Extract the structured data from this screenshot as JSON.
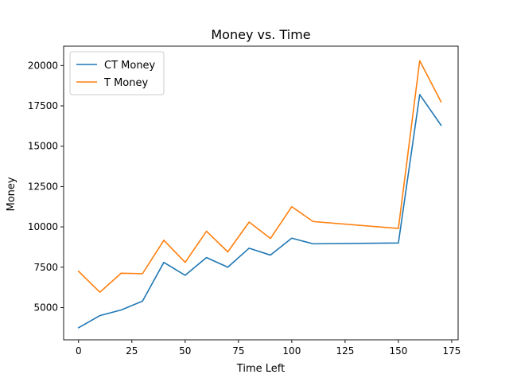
{
  "chart_data": {
    "type": "line",
    "title": "Money vs. Time",
    "xlabel": "Time Left",
    "ylabel": "Money",
    "xlim": [
      -7,
      178
    ],
    "ylim": [
      3000,
      21200
    ],
    "xticks": [
      0,
      25,
      50,
      75,
      100,
      125,
      150,
      175
    ],
    "yticks": [
      5000,
      7500,
      10000,
      12500,
      15000,
      17500,
      20000
    ],
    "grid": false,
    "legend_position": "top-left",
    "x": [
      0,
      10,
      20,
      30,
      40,
      50,
      60,
      70,
      80,
      90,
      100,
      110,
      150,
      160,
      170
    ],
    "series": [
      {
        "name": "CT Money",
        "color": "#1f77b4",
        "values": [
          3750,
          4500,
          4850,
          5400,
          7800,
          7000,
          8100,
          7500,
          8680,
          8250,
          9300,
          8950,
          9000,
          18200,
          16300
        ]
      },
      {
        "name": "T Money",
        "color": "#ff7f0e",
        "values": [
          7250,
          5950,
          7130,
          7100,
          9170,
          7800,
          9730,
          8450,
          10300,
          9280,
          11250,
          10330,
          9900,
          20300,
          17750
        ]
      }
    ]
  }
}
